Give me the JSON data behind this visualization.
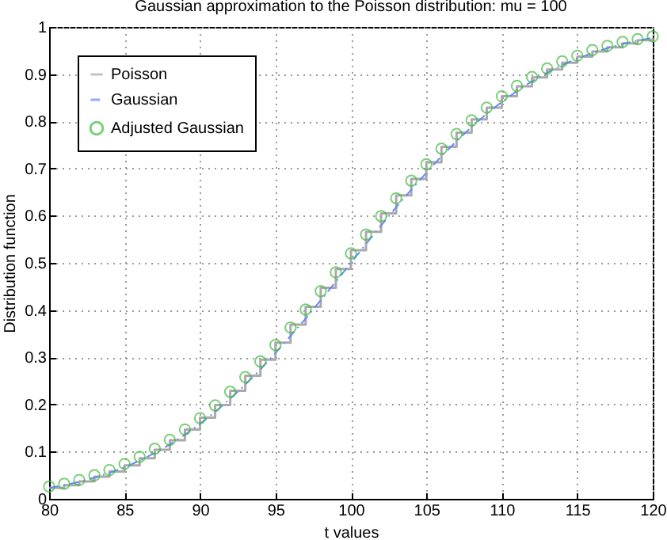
{
  "chart_data": {
    "type": "line",
    "title": "Gaussian approximation to the Poisson distribution: mu = 100",
    "xlabel": "t values",
    "ylabel": "Distribution function",
    "x": [
      80,
      81,
      82,
      83,
      84,
      85,
      86,
      87,
      88,
      89,
      90,
      91,
      92,
      93,
      94,
      95,
      96,
      97,
      98,
      99,
      100,
      101,
      102,
      103,
      104,
      105,
      106,
      107,
      108,
      109,
      110,
      111,
      112,
      113,
      114,
      115,
      116,
      117,
      118,
      119,
      120
    ],
    "series": [
      {
        "name": "Poisson",
        "type": "step",
        "color": "#aaaaaa",
        "line_style": "solid",
        "values": [
          0.023,
          0.029,
          0.037,
          0.047,
          0.058,
          0.071,
          0.086,
          0.104,
          0.124,
          0.147,
          0.172,
          0.199,
          0.229,
          0.261,
          0.295,
          0.331,
          0.369,
          0.407,
          0.447,
          0.487,
          0.527,
          0.566,
          0.605,
          0.643,
          0.678,
          0.713,
          0.746,
          0.776,
          0.804,
          0.829,
          0.853,
          0.874,
          0.893,
          0.91,
          0.924,
          0.937,
          0.948,
          0.957,
          0.965,
          0.972,
          0.977
        ]
      },
      {
        "name": "Gaussian",
        "type": "line",
        "color": "#6688ff",
        "line_style": "dashed",
        "values": [
          0.023,
          0.029,
          0.036,
          0.045,
          0.055,
          0.067,
          0.081,
          0.097,
          0.115,
          0.136,
          0.159,
          0.184,
          0.212,
          0.242,
          0.274,
          0.309,
          0.345,
          0.382,
          0.421,
          0.46,
          0.5,
          0.54,
          0.579,
          0.618,
          0.655,
          0.691,
          0.726,
          0.758,
          0.788,
          0.816,
          0.841,
          0.864,
          0.885,
          0.903,
          0.919,
          0.933,
          0.945,
          0.955,
          0.964,
          0.971,
          0.977
        ]
      },
      {
        "name": "Adjusted Gaussian",
        "type": "scatter",
        "color": "#44bb44",
        "marker": "circle",
        "values": [
          0.026,
          0.032,
          0.04,
          0.05,
          0.061,
          0.074,
          0.089,
          0.106,
          0.125,
          0.147,
          0.171,
          0.198,
          0.227,
          0.258,
          0.291,
          0.326,
          0.363,
          0.401,
          0.44,
          0.48,
          0.52,
          0.56,
          0.599,
          0.637,
          0.674,
          0.709,
          0.742,
          0.773,
          0.802,
          0.829,
          0.853,
          0.875,
          0.894,
          0.912,
          0.927,
          0.939,
          0.951,
          0.96,
          0.968,
          0.974,
          0.98
        ]
      }
    ],
    "xlim": [
      80,
      120
    ],
    "xticks": [
      80,
      85,
      90,
      95,
      100,
      105,
      110,
      115,
      120
    ],
    "ylim": [
      0,
      1
    ],
    "yticks": [
      0,
      0.1,
      0.2,
      0.3,
      0.4,
      0.5,
      0.6,
      0.7,
      0.8,
      0.9,
      1
    ],
    "grid": true,
    "legend": "top left"
  }
}
